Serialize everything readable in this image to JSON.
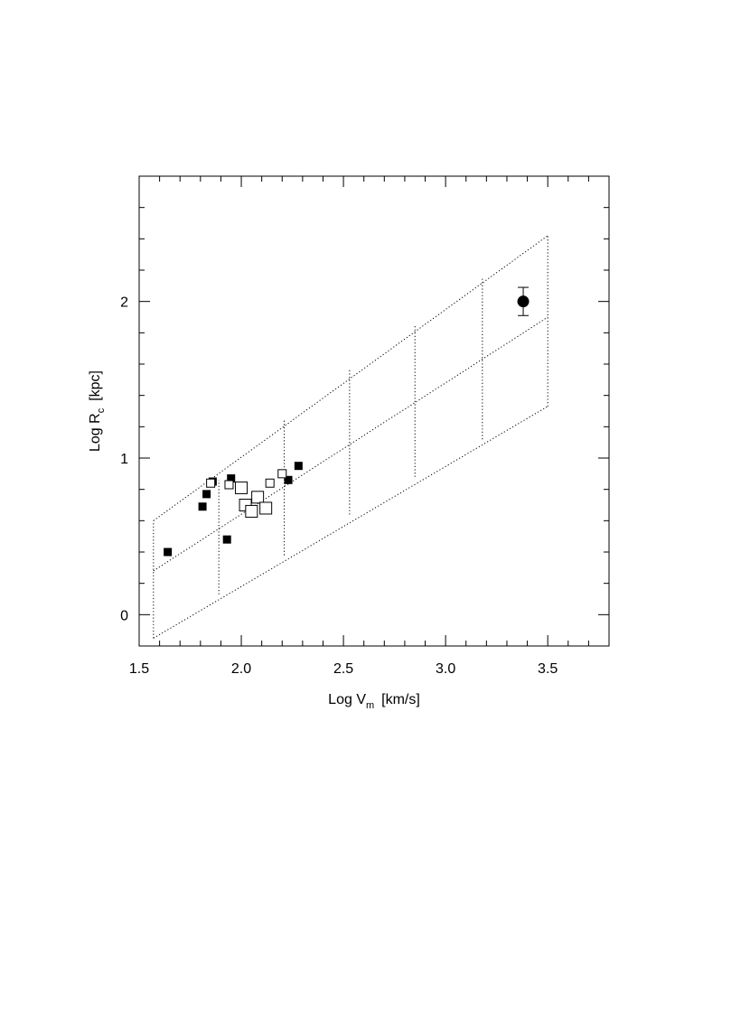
{
  "chart_data": {
    "type": "scatter",
    "xlabel": {
      "main": "Log V",
      "sub": "m",
      "unit": "[km/s]"
    },
    "ylabel": {
      "main": "Log R",
      "sub": "c",
      "unit": "[kpc]"
    },
    "xlim": [
      1.5,
      3.8
    ],
    "ylim": [
      -0.2,
      2.8
    ],
    "x_ticks": [
      {
        "value": 1.5,
        "label": "1.5"
      },
      {
        "value": 2.0,
        "label": "2.0"
      },
      {
        "value": 2.5,
        "label": "2.5"
      },
      {
        "value": 3.0,
        "label": "3.0"
      },
      {
        "value": 3.5,
        "label": "3.5"
      }
    ],
    "y_ticks": [
      {
        "value": 0,
        "label": "0"
      },
      {
        "value": 1,
        "label": "1"
      },
      {
        "value": 2,
        "label": "2"
      }
    ],
    "x_minor_step": 0.1,
    "y_minor_step": 0.2,
    "grid": false,
    "model_grid": {
      "style": "dotted",
      "x_range": [
        1.57,
        3.5
      ],
      "lines": [
        {
          "x": [
            1.57,
            3.5
          ],
          "y": [
            0.6,
            2.42
          ]
        },
        {
          "x": [
            1.57,
            3.5
          ],
          "y": [
            0.28,
            1.9
          ]
        },
        {
          "x": [
            1.57,
            3.5
          ],
          "y": [
            -0.15,
            1.33
          ]
        }
      ],
      "verticals": [
        {
          "x": 1.57,
          "y": [
            -0.15,
            0.6
          ]
        },
        {
          "x": 1.89,
          "y": [
            0.13,
            0.86
          ]
        },
        {
          "x": 2.21,
          "y": [
            0.38,
            1.24
          ]
        },
        {
          "x": 2.53,
          "y": [
            0.64,
            1.57
          ]
        },
        {
          "x": 2.85,
          "y": [
            0.88,
            1.85
          ]
        },
        {
          "x": 3.18,
          "y": [
            1.12,
            2.15
          ]
        },
        {
          "x": 3.5,
          "y": [
            1.33,
            2.42
          ]
        }
      ]
    },
    "series": [
      {
        "marker": "filled-square",
        "points": [
          {
            "x": 1.64,
            "y": 0.4
          },
          {
            "x": 1.81,
            "y": 0.69
          },
          {
            "x": 1.83,
            "y": 0.77
          },
          {
            "x": 1.86,
            "y": 0.85
          },
          {
            "x": 1.93,
            "y": 0.48
          },
          {
            "x": 1.95,
            "y": 0.87
          },
          {
            "x": 2.23,
            "y": 0.86
          },
          {
            "x": 2.28,
            "y": 0.95
          }
        ]
      },
      {
        "marker": "open-square",
        "points": [
          {
            "x": 1.85,
            "y": 0.84,
            "size": "small"
          },
          {
            "x": 1.94,
            "y": 0.83,
            "size": "small"
          },
          {
            "x": 2.0,
            "y": 0.81,
            "size": "large"
          },
          {
            "x": 2.02,
            "y": 0.7,
            "size": "large"
          },
          {
            "x": 2.05,
            "y": 0.66,
            "size": "large"
          },
          {
            "x": 2.08,
            "y": 0.75,
            "size": "large"
          },
          {
            "x": 2.12,
            "y": 0.68,
            "size": "large"
          },
          {
            "x": 2.14,
            "y": 0.84,
            "size": "small"
          },
          {
            "x": 2.2,
            "y": 0.9,
            "size": "small"
          }
        ]
      },
      {
        "marker": "filled-circle",
        "points": [
          {
            "x": 3.38,
            "y": 2.0,
            "err_low": 1.91,
            "err_high": 2.09
          }
        ]
      }
    ]
  }
}
